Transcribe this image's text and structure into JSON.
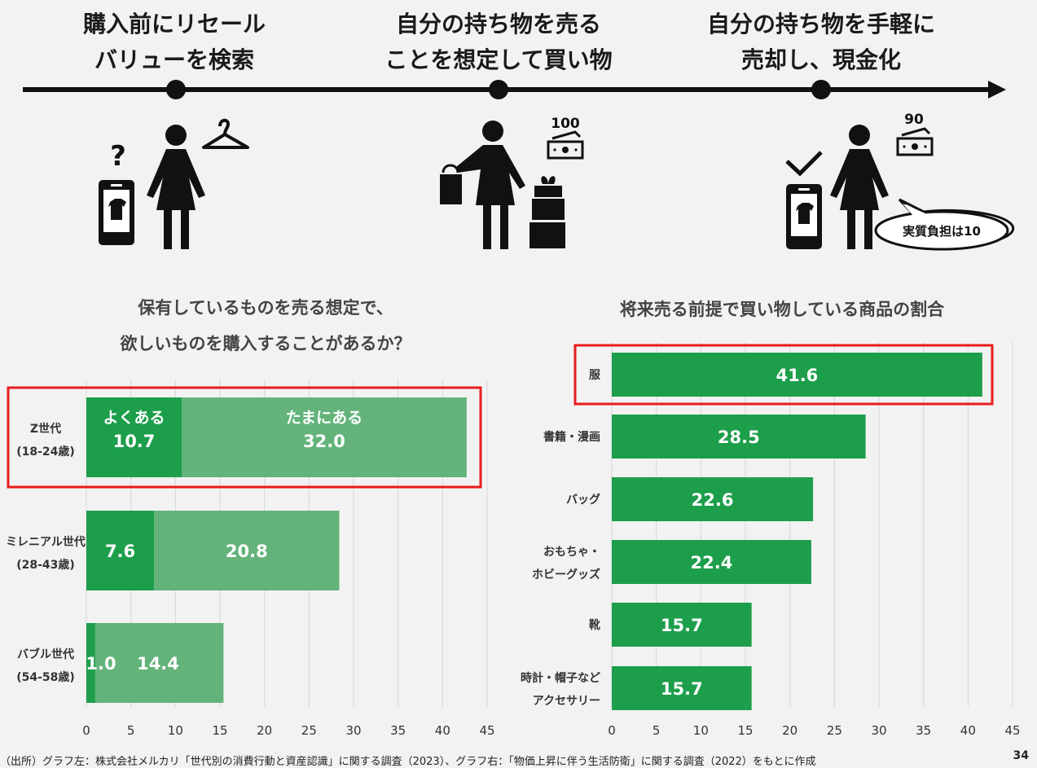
{
  "steps": [
    {
      "line1": "購入前にリセール",
      "line2": "バリューを検索"
    },
    {
      "line1": "自分の持ち物を売る",
      "line2": "ことを想定して買い物"
    },
    {
      "line1": "自分の持ち物を手軽に",
      "line2": "売却し、現金化"
    }
  ],
  "money": {
    "step2_amount": "100",
    "step3_amount": "90",
    "callout": "実質負担は10"
  },
  "left_title": {
    "line1": "保有しているものを売る想定で、",
    "line2": "欲しいものを購入することがあるか？"
  },
  "right_title": "将来売る前提で買い物している商品の割合",
  "footnote": "（出所）グラフ左：株式会社メルカリ「世代別の消費行動と資産認識」に関する調査（2023）、グラフ右：「物価上昇に伴う生活防衛」に関する調査（2022）をもとに作成",
  "page_number": "34",
  "colors": {
    "dark_green": "#1d9e4b",
    "light_green": "#63b37a",
    "highlight": "#e81c1c",
    "grid": "#d6d6d6"
  },
  "chart_data": [
    {
      "type": "bar",
      "stacked": true,
      "orientation": "horizontal",
      "categories": [
        {
          "line1": "Z世代",
          "line2": "(18-24歳)"
        },
        {
          "line1": "ミレニアル世代",
          "line2": "(28-43歳)"
        },
        {
          "line1": "バブル世代",
          "line2": "(54-58歳)"
        }
      ],
      "series": [
        {
          "name": "よくある",
          "values": [
            10.7,
            7.6,
            1.0
          ],
          "labels": [
            "10.7",
            "7.6",
            "1.0"
          ]
        },
        {
          "name": "たまにある",
          "values": [
            32.0,
            20.8,
            14.4
          ],
          "labels": [
            "32.0",
            "20.8",
            "14.4"
          ]
        }
      ],
      "xlim": [
        0,
        45
      ],
      "ticks": [
        "0",
        "5",
        "10",
        "15",
        "20",
        "25",
        "30",
        "35",
        "40",
        "45"
      ],
      "highlighted_category": 0
    },
    {
      "type": "bar",
      "orientation": "horizontal",
      "categories": [
        {
          "line1": "服",
          "line2": ""
        },
        {
          "line1": "書籍・漫画",
          "line2": ""
        },
        {
          "line1": "バッグ",
          "line2": ""
        },
        {
          "line1": "おもちゃ・",
          "line2": "ホビーグッズ"
        },
        {
          "line1": "靴",
          "line2": ""
        },
        {
          "line1": "時計・帽子など",
          "line2": "アクセサリー"
        }
      ],
      "values": [
        41.6,
        28.5,
        22.6,
        22.4,
        15.7,
        15.7
      ],
      "labels": [
        "41.6",
        "28.5",
        "22.6",
        "22.4",
        "15.7",
        "15.7"
      ],
      "xlim": [
        0,
        45
      ],
      "ticks": [
        "0",
        "5",
        "10",
        "15",
        "20",
        "25",
        "30",
        "35",
        "40",
        "45"
      ],
      "highlighted_category": 0
    }
  ]
}
